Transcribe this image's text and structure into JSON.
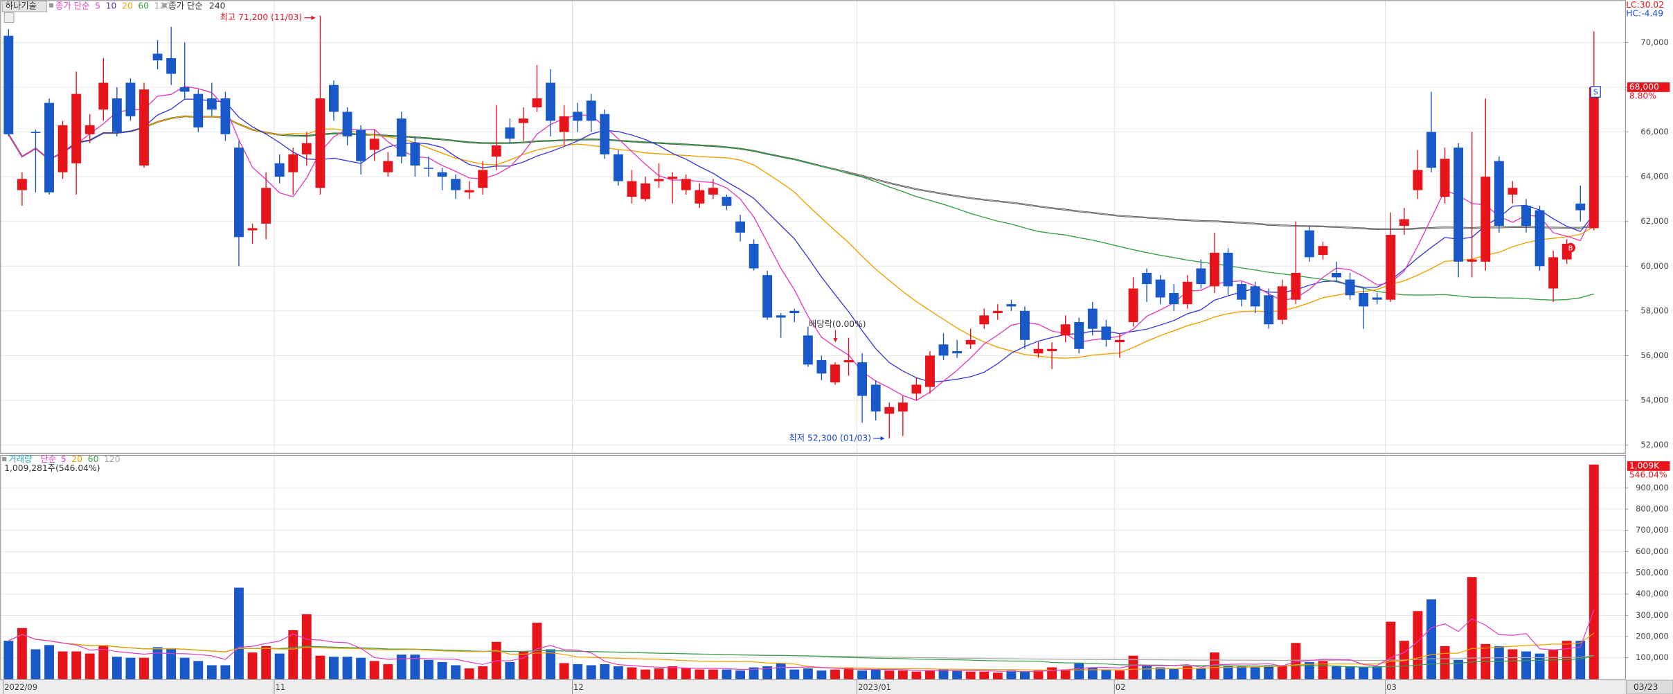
{
  "chart_data": [
    {
      "type": "candlestick",
      "title": "하나기술",
      "categories": [
        "2022/09",
        null,
        null,
        null,
        null,
        null,
        null,
        null,
        null,
        null,
        null,
        null,
        null,
        null,
        null,
        null,
        null,
        null,
        null,
        null,
        "11",
        null,
        null,
        null,
        null,
        null,
        null,
        null,
        null,
        null,
        null,
        null,
        null,
        null,
        null,
        null,
        null,
        null,
        null,
        null,
        null,
        null,
        "12",
        null,
        null,
        null,
        null,
        null,
        null,
        null,
        null,
        null,
        null,
        null,
        null,
        null,
        null,
        null,
        null,
        null,
        null,
        null,
        null,
        "2023/01",
        null,
        null,
        null,
        null,
        null,
        null,
        null,
        null,
        null,
        null,
        null,
        null,
        null,
        null,
        null,
        null,
        null,
        null,
        "02",
        null,
        null,
        null,
        null,
        null,
        null,
        null,
        null,
        null,
        null,
        null,
        null,
        null,
        null,
        null,
        null,
        null,
        null,
        null,
        "03",
        null,
        null,
        null,
        null,
        null,
        null,
        null,
        null,
        null,
        null,
        null,
        null,
        null,
        null,
        null
      ],
      "open": [
        70300,
        63400,
        66000,
        67300,
        64200,
        64600,
        65900,
        67000,
        67500,
        68200,
        64500,
        69500,
        69300,
        68000,
        67700,
        67500,
        67500,
        65300,
        61600,
        61900,
        64600,
        64200,
        65000,
        63500,
        68100,
        66900,
        66100,
        65200,
        64200,
        66600,
        65500,
        64400,
        64200,
        63900,
        63300,
        63500,
        64900,
        66200,
        66400,
        67100,
        68200,
        66000,
        66900,
        67400,
        66800,
        65000,
        63100,
        63000,
        63800,
        63900,
        63400,
        62800,
        63200,
        63100,
        62000,
        61000,
        59600,
        57800,
        58000,
        56900,
        55800,
        54800,
        55700,
        55700,
        54700,
        53400,
        53500,
        54300,
        54600,
        56500,
        56200,
        56500,
        57400,
        57900,
        58300,
        58000,
        56100,
        56200,
        56900,
        57500,
        58100,
        57300,
        56600,
        57500,
        59700,
        59400,
        58800,
        58300,
        59900,
        59100,
        60600,
        59200,
        59100,
        58700,
        57600,
        58500,
        61600,
        60500,
        59700,
        59400,
        58800,
        58600,
        58500,
        61800,
        63400,
        66000,
        63100,
        65300,
        60200,
        60200,
        64700,
        63200,
        62700,
        62500,
        59000,
        60300,
        62800,
        61700
      ],
      "high": [
        70600,
        64200,
        66100,
        67500,
        66500,
        68700,
        66800,
        69300,
        68000,
        68400,
        68200,
        70100,
        70700,
        70000,
        67900,
        68200,
        67800,
        65600,
        61900,
        64200,
        65000,
        65300,
        66000,
        71200,
        68300,
        67100,
        66300,
        66100,
        65100,
        66900,
        65800,
        64900,
        64400,
        64100,
        63800,
        64700,
        67200,
        66600,
        67100,
        69000,
        68800,
        67200,
        67300,
        67700,
        67000,
        65200,
        64300,
        64000,
        64600,
        64200,
        64100,
        63700,
        63900,
        63200,
        62300,
        61200,
        59800,
        57900,
        58100,
        57300,
        56000,
        55700,
        56800,
        56100,
        54900,
        53900,
        54200,
        55000,
        56200,
        57000,
        56700,
        57200,
        58100,
        58300,
        58500,
        58200,
        56600,
        56600,
        57800,
        57700,
        58400,
        57600,
        57000,
        59500,
        59900,
        59600,
        59200,
        59600,
        60300,
        61500,
        60800,
        59300,
        59300,
        59000,
        59400,
        62000,
        61800,
        61100,
        60200,
        59700,
        59000,
        58800,
        62400,
        62600,
        65200,
        67800,
        65300,
        65500,
        66000,
        67500,
        64900,
        63800,
        63000,
        62700,
        60700,
        61200,
        63600,
        70500
      ],
      "low": [
        65800,
        62700,
        63300,
        63200,
        63900,
        63200,
        65500,
        66500,
        65800,
        66500,
        64400,
        68800,
        68100,
        67500,
        66000,
        66700,
        65600,
        60000,
        61000,
        61200,
        63700,
        63200,
        64500,
        63200,
        66500,
        65400,
        64100,
        64700,
        64000,
        64600,
        64000,
        64000,
        63400,
        63000,
        63000,
        63200,
        64300,
        65500,
        65600,
        66900,
        65800,
        65400,
        66000,
        66000,
        64800,
        63600,
        62800,
        62900,
        63500,
        62800,
        63200,
        62600,
        63000,
        62500,
        61100,
        59800,
        57600,
        56800,
        57500,
        55500,
        54900,
        54700,
        55100,
        53000,
        53100,
        52300,
        52400,
        54000,
        54300,
        55800,
        55900,
        56300,
        57200,
        57600,
        58000,
        56300,
        55900,
        55400,
        56600,
        56100,
        56900,
        56400,
        55900,
        57300,
        58400,
        58300,
        58000,
        58100,
        59000,
        58800,
        58700,
        58200,
        57900,
        57200,
        57400,
        58300,
        60200,
        60300,
        59300,
        58500,
        57200,
        58300,
        58400,
        61400,
        63000,
        64200,
        62800,
        59500,
        59500,
        59800,
        61500,
        62800,
        61500,
        59800,
        58400,
        60100,
        62000,
        61600
      ],
      "close": [
        65900,
        63900,
        66000,
        63300,
        66300,
        67700,
        66300,
        68200,
        66000,
        66700,
        67900,
        69200,
        68600,
        67800,
        66200,
        67000,
        65900,
        61300,
        61700,
        63500,
        64000,
        65000,
        65500,
        67500,
        66900,
        65800,
        64700,
        65700,
        64700,
        64900,
        64500,
        64400,
        64000,
        63400,
        63400,
        64300,
        65400,
        65700,
        66600,
        67500,
        66500,
        66700,
        66500,
        66500,
        65000,
        63800,
        63800,
        63700,
        63900,
        64000,
        63900,
        63400,
        63500,
        62700,
        61500,
        59900,
        57700,
        57700,
        57900,
        55600,
        55200,
        55600,
        55800,
        54200,
        53500,
        53700,
        53900,
        54700,
        56000,
        56000,
        56100,
        56700,
        57800,
        58000,
        58200,
        56700,
        56300,
        56300,
        57400,
        56300,
        57200,
        56700,
        56700,
        59000,
        59200,
        58600,
        58300,
        59300,
        59200,
        60600,
        59100,
        58500,
        58200,
        57400,
        59100,
        59700,
        60400,
        60900,
        59500,
        58700,
        58200,
        58500,
        61400,
        62100,
        64300,
        64400,
        64800,
        60200,
        60300,
        64000,
        61800,
        63500,
        61800,
        60000,
        60400,
        61000,
        62500,
        68000
      ],
      "up_color": "#e8141c",
      "down_color": "#1858c8",
      "ylim": [
        51850,
        71900
      ],
      "yticks": [
        {
          "value": 52000,
          "label": "52,000"
        },
        {
          "value": 54000,
          "label": "54,000"
        },
        {
          "value": 56000,
          "label": "56,000"
        },
        {
          "value": 58000,
          "label": "58,000"
        },
        {
          "value": 60000,
          "label": "60,000"
        },
        {
          "value": 62000,
          "label": "62,000"
        },
        {
          "value": 64000,
          "label": "64,000"
        },
        {
          "value": 66000,
          "label": "66,000"
        },
        {
          "value": 68000,
          "label": "68,000"
        },
        {
          "value": 70000,
          "label": "70,000"
        }
      ],
      "grid": true,
      "ma_label": "종가 단순",
      "ma": [
        {
          "period": 5,
          "color": "#e23fc2"
        },
        {
          "period": 10,
          "color": "#3c3cd8"
        },
        {
          "period": 20,
          "color": "#f0a000"
        },
        {
          "period": 60,
          "color": "#3aa04a"
        },
        {
          "period": 120,
          "color": "#a8a8a8"
        }
      ],
      "ma_long_label": "종가 단순",
      "ma_long": {
        "period": 240,
        "color": "#000000"
      },
      "high_label": "최고 71,200 (11/03)",
      "low_label": "최저 52,300 (01/03)",
      "ex_dividend_label": "배당락(0.00%)",
      "sell_signal": "S",
      "buy_signal": "B",
      "last_price_label": "68,000",
      "last_change_label": "8.80%",
      "lc_label": "LC:30.02",
      "hc_label": "HC:-4.49"
    },
    {
      "type": "bar",
      "title": "거래량",
      "values": [
        180000,
        240000,
        140000,
        160000,
        130000,
        130000,
        120000,
        160000,
        105000,
        100000,
        100000,
        150000,
        145000,
        100000,
        85000,
        65000,
        65000,
        430000,
        125000,
        155000,
        120000,
        230000,
        305000,
        110000,
        105000,
        105000,
        100000,
        85000,
        70000,
        115000,
        115000,
        90000,
        80000,
        65000,
        50000,
        60000,
        175000,
        80000,
        130000,
        265000,
        140000,
        75000,
        70000,
        65000,
        70000,
        60000,
        55000,
        45000,
        50000,
        60000,
        50000,
        45000,
        45000,
        45000,
        40000,
        55000,
        60000,
        75000,
        45000,
        50000,
        40000,
        45000,
        55000,
        40000,
        45000,
        40000,
        40000,
        35000,
        40000,
        45000,
        40000,
        35000,
        35000,
        30000,
        40000,
        35000,
        40000,
        55000,
        45000,
        75000,
        55000,
        45000,
        40000,
        110000,
        65000,
        55000,
        50000,
        60000,
        50000,
        125000,
        60000,
        60000,
        55000,
        65000,
        65000,
        170000,
        80000,
        85000,
        60000,
        60000,
        55000,
        60000,
        270000,
        180000,
        320000,
        375000,
        155000,
        90000,
        480000,
        165000,
        155000,
        140000,
        130000,
        120000,
        140000,
        180000,
        180000,
        1009281
      ],
      "ylim": [
        0,
        1035000
      ],
      "yticks": [
        {
          "value": 100000,
          "label": "100,000"
        },
        {
          "value": 200000,
          "label": "200,000"
        },
        {
          "value": 300000,
          "label": "300,000"
        },
        {
          "value": 400000,
          "label": "400,000"
        },
        {
          "value": 500000,
          "label": "500,000"
        },
        {
          "value": 600000,
          "label": "600,000"
        },
        {
          "value": 700000,
          "label": "700,000"
        },
        {
          "value": 800000,
          "label": "800,000"
        },
        {
          "value": 900000,
          "label": "900,000"
        }
      ],
      "grid": true,
      "ma_label": "단순",
      "ma": [
        {
          "period": 5,
          "color": "#e23fc2"
        },
        {
          "period": 20,
          "color": "#f0a000"
        },
        {
          "period": 60,
          "color": "#3aa04a"
        },
        {
          "period": 120,
          "color": "#a8a8a8"
        }
      ],
      "current_label": "1,009,281주(546.04%)",
      "last_label": "1,009K",
      "last_pct_label": "546.04%",
      "last_date": "03/23"
    }
  ]
}
